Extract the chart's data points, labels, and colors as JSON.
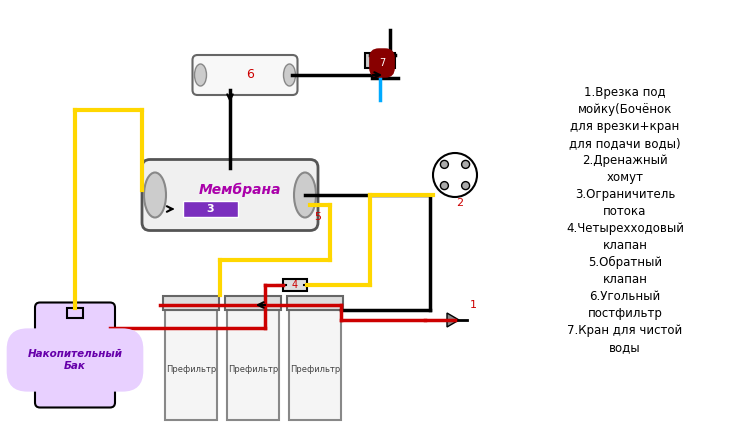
{
  "bg_color": "#ffffff",
  "title": "",
  "legend_lines": [
    "1.Врезка под",
    "мойку(Бочёнок",
    "для врезки+кран",
    "для подачи воды)",
    "2.Дренажный",
    "хомут",
    "3.Ограничитель",
    "потока",
    "4.Четырехходовый",
    "клапан",
    "5.Обратный",
    "клапан",
    "6.Угольный",
    "постфильтр",
    "7.Кран для чистой",
    "воды"
  ],
  "membrane_label": "Мембрана",
  "tank_label": "Накопительный\nБак",
  "prefilter_labels": [
    "Префильтр",
    "Префильтр",
    "Префильтр"
  ],
  "label_6": "6",
  "label_5": "5",
  "label_3": "3",
  "label_4": "4",
  "label_2": "2",
  "label_1": "1",
  "label_7": "7",
  "yellow_color": "#FFD700",
  "red_color": "#CC0000",
  "blue_color": "#00AAFF",
  "black_color": "#000000",
  "dark_gray": "#333333",
  "membrane_fill": "#f0f0f0",
  "membrane_border": "#555555",
  "purple_fill": "#7B2FBE",
  "tank_fill": "#E8D0FF",
  "prefilter_fill": "#f5f5f5",
  "number_color": "#CC0000"
}
